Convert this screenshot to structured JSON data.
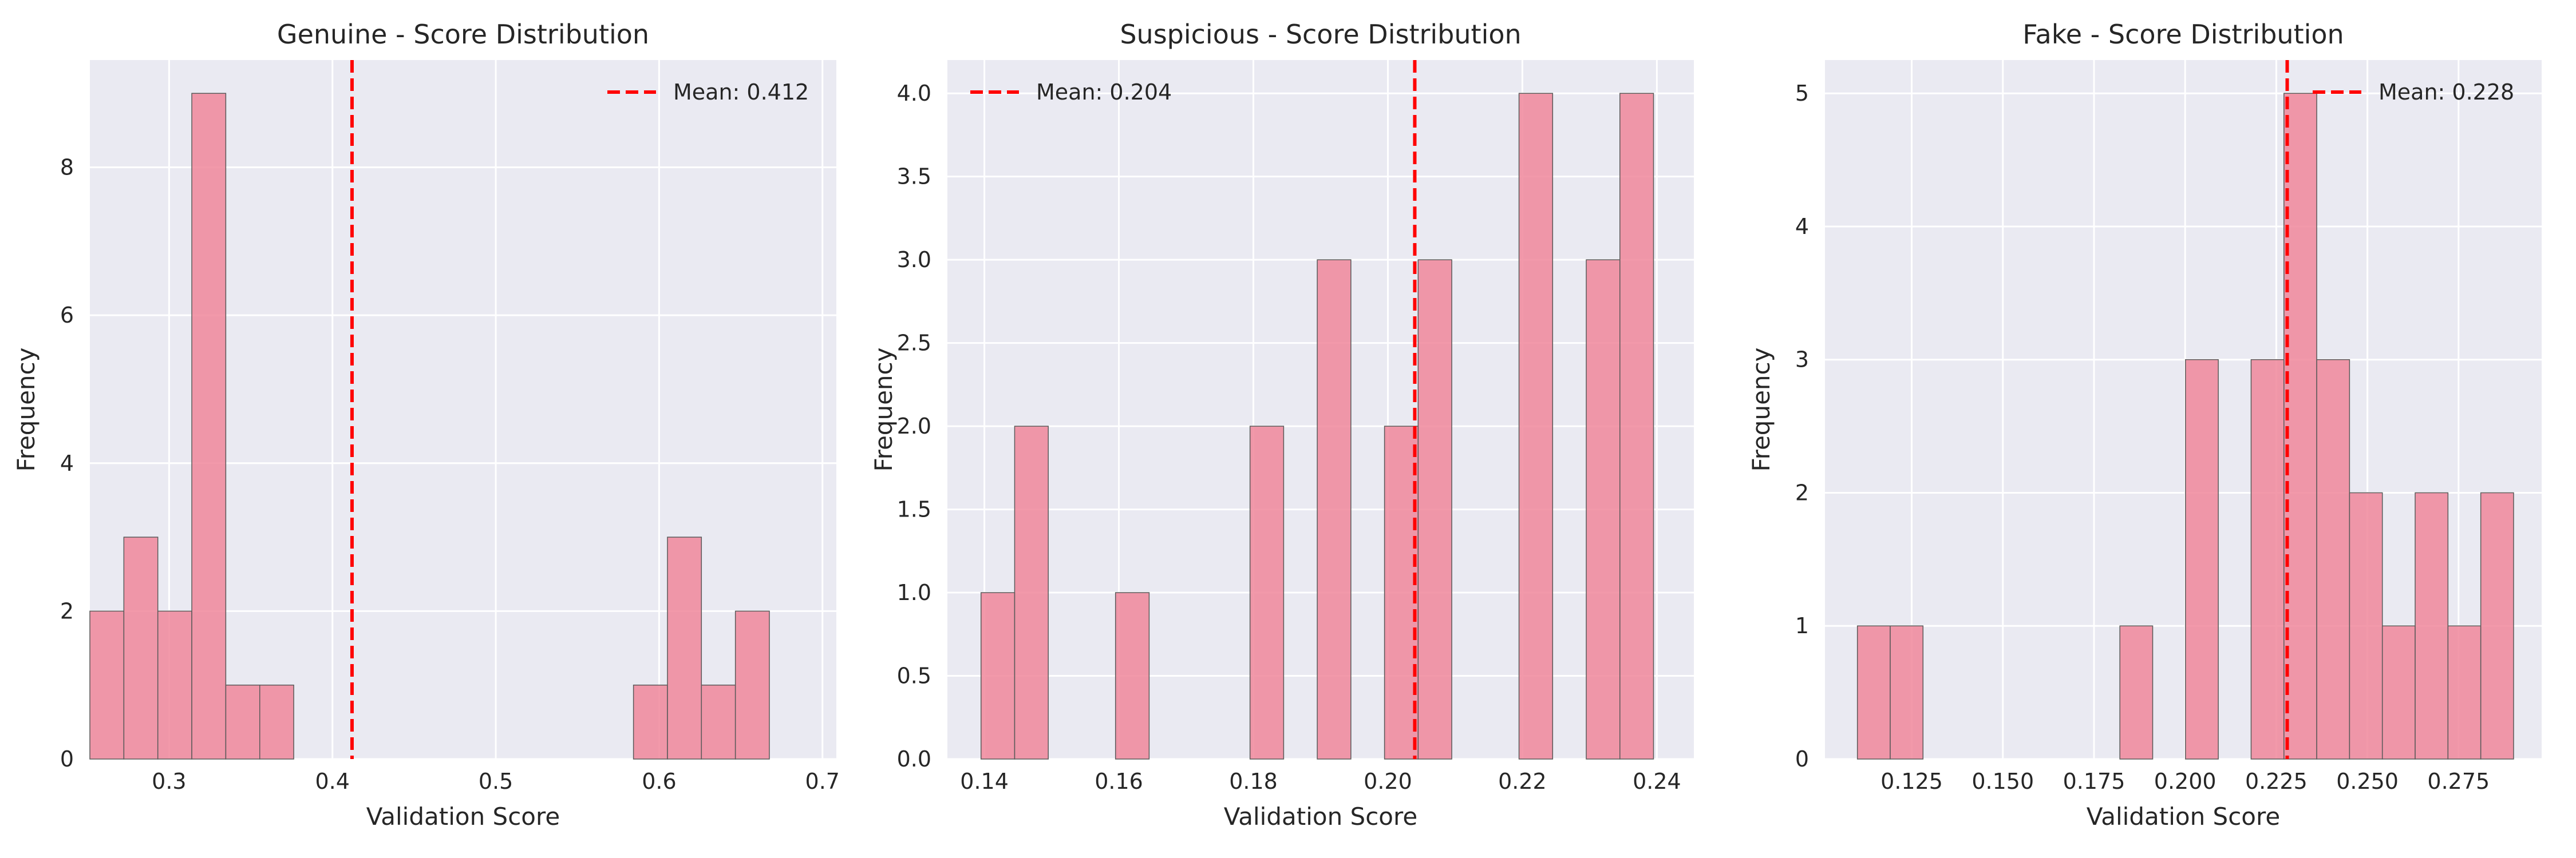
{
  "colors": {
    "bar_fill": "#f0879b",
    "bar_edge": "#5a5a5a",
    "mean_line": "#ff0000",
    "plot_bg": "#eaeaf2",
    "grid": "#ffffff",
    "text": "#262626"
  },
  "chart_data": [
    {
      "type": "bar",
      "title": "Genuine - Score Distribution",
      "xlabel": "Validation Score",
      "ylabel": "Frequency",
      "xlim": [
        0.2515,
        0.7085
      ],
      "ylim": [
        0,
        9.45
      ],
      "xticks": [
        0.3,
        0.4,
        0.5,
        0.6,
        0.7
      ],
      "xtick_labels": [
        "0.3",
        "0.4",
        "0.5",
        "0.6",
        "0.7"
      ],
      "yticks": [
        0,
        2,
        4,
        6,
        8
      ],
      "ytick_labels": [
        "0",
        "2",
        "4",
        "6",
        "8"
      ],
      "bin_edges": [
        0.2723,
        0.2931,
        0.3139,
        0.3347,
        0.3555,
        0.3763,
        0.3971,
        0.4179,
        0.4387,
        0.4595,
        0.4803,
        0.5011,
        0.5219,
        0.5427,
        0.5635,
        0.5843,
        0.6051,
        0.6259,
        0.6467,
        0.6675,
        0.6883
      ],
      "bin_edges_start": 0.2515,
      "counts": [
        2,
        3,
        2,
        9,
        1,
        1,
        0,
        0,
        0,
        0,
        0,
        0,
        0,
        0,
        0,
        0,
        1,
        3,
        1,
        2
      ],
      "mean": 0.412,
      "legend": {
        "label": "Mean: 0.412",
        "position": "upper right"
      },
      "grid": true
    },
    {
      "type": "bar",
      "title": "Suspicious - Score Distribution",
      "xlabel": "Validation Score",
      "ylabel": "Frequency",
      "xlim": [
        0.1345,
        0.2455
      ],
      "ylim": [
        0,
        4.2
      ],
      "xticks": [
        0.14,
        0.16,
        0.18,
        0.2,
        0.22,
        0.24
      ],
      "xtick_labels": [
        "0.14",
        "0.16",
        "0.18",
        "0.20",
        "0.22",
        "0.24"
      ],
      "yticks": [
        0,
        0.5,
        1,
        1.5,
        2,
        2.5,
        3,
        3.5,
        4
      ],
      "ytick_labels": [
        "0.0",
        "0.5",
        "1.0",
        "1.5",
        "2.0",
        "2.5",
        "3.0",
        "3.5",
        "4.0"
      ],
      "bin_edges": [
        0.1395,
        0.1445,
        0.1495,
        0.1545,
        0.1595,
        0.1645,
        0.1695,
        0.1745,
        0.1795,
        0.1845,
        0.1895,
        0.1945,
        0.1995,
        0.2045,
        0.2095,
        0.2145,
        0.2195,
        0.2245,
        0.2295,
        0.2345,
        0.2395
      ],
      "counts": [
        1,
        2,
        0,
        0,
        1,
        0,
        0,
        0,
        2,
        0,
        3,
        0,
        2,
        3,
        0,
        0,
        4,
        0,
        3,
        4
      ],
      "mean": 0.204,
      "legend": {
        "label": "Mean: 0.204",
        "position": "upper left"
      },
      "grid": true
    },
    {
      "type": "bar",
      "title": "Fake - Score Distribution",
      "xlabel": "Validation Score",
      "ylabel": "Frequency",
      "xlim": [
        0.1012,
        0.2978
      ],
      "ylim": [
        0,
        5.25
      ],
      "xticks": [
        0.125,
        0.15,
        0.175,
        0.2,
        0.225,
        0.25,
        0.275
      ],
      "xtick_labels": [
        "0.125",
        "0.150",
        "0.175",
        "0.200",
        "0.225",
        "0.250",
        "0.275"
      ],
      "yticks": [
        0,
        1,
        2,
        3,
        4,
        5
      ],
      "ytick_labels": [
        "0",
        "1",
        "2",
        "3",
        "4",
        "5"
      ],
      "bin_edges": [
        0.1101,
        0.1191,
        0.1281,
        0.1371,
        0.1461,
        0.1551,
        0.1641,
        0.1731,
        0.1821,
        0.1911,
        0.2001,
        0.2091,
        0.2181,
        0.2271,
        0.2361,
        0.2451,
        0.2541,
        0.2631,
        0.2721,
        0.2811,
        0.2901
      ],
      "counts": [
        1,
        1,
        0,
        0,
        0,
        0,
        0,
        0,
        1,
        0,
        3,
        0,
        3,
        5,
        3,
        2,
        1,
        2,
        1,
        2
      ],
      "mean": 0.228,
      "legend": {
        "label": "Mean: 0.228",
        "position": "upper right"
      },
      "grid": true
    }
  ]
}
